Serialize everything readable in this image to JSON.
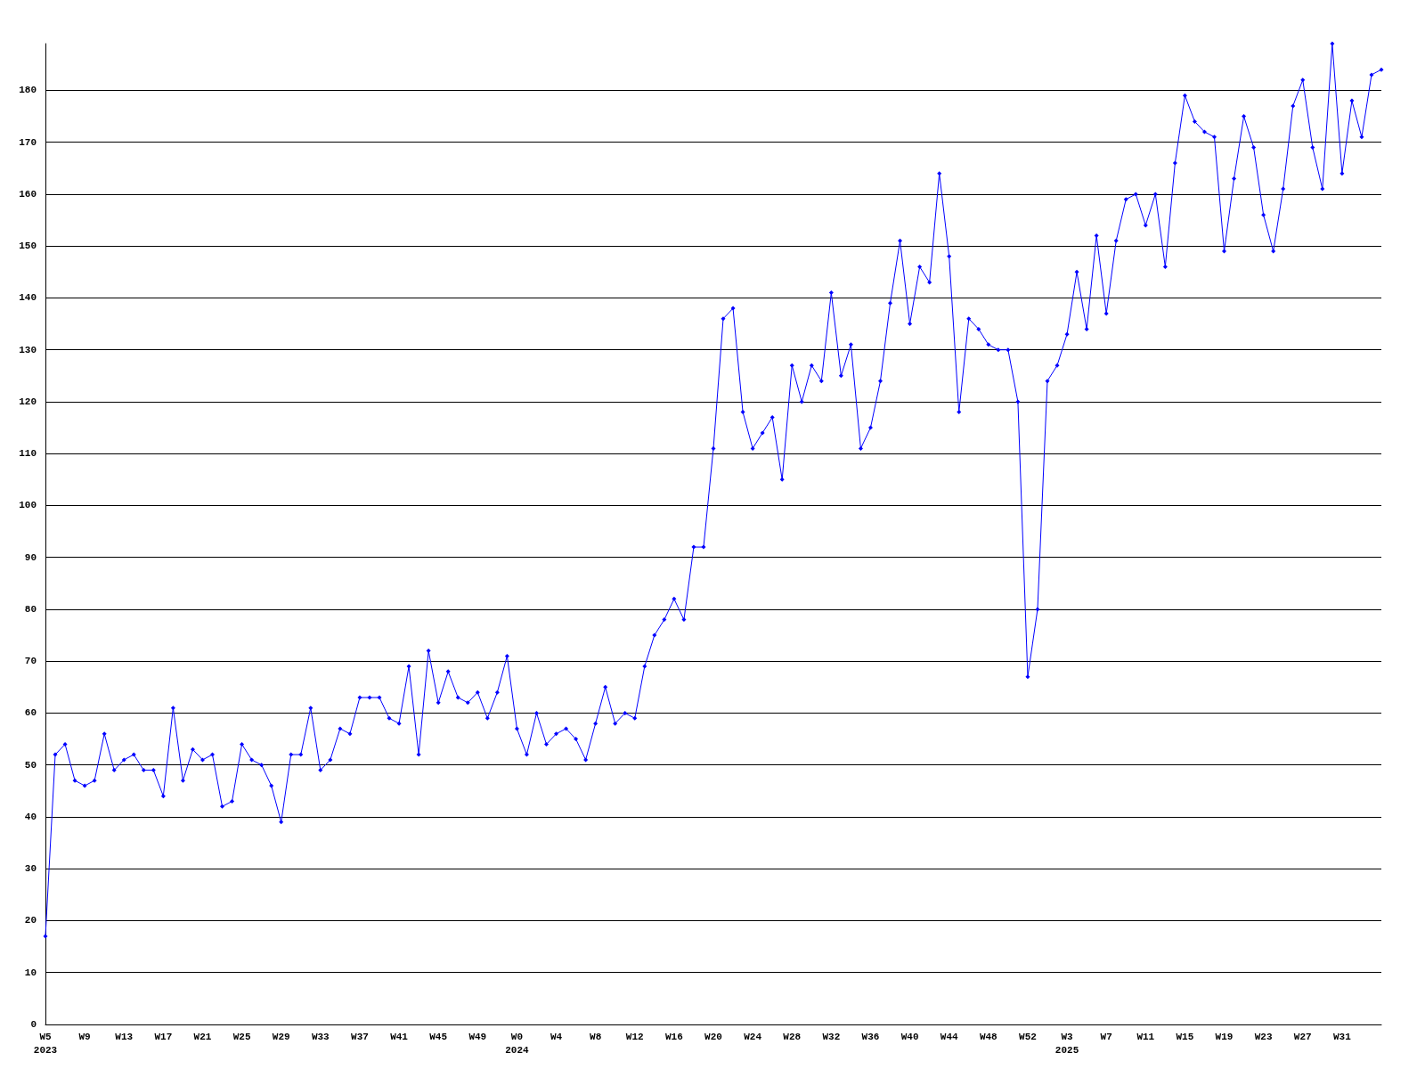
{
  "chart_data": {
    "type": "line",
    "categories": [
      "W5\n2023",
      null,
      null,
      null,
      "W9",
      null,
      null,
      null,
      "W13",
      null,
      null,
      null,
      "W17",
      null,
      null,
      null,
      "W21",
      null,
      null,
      null,
      "W25",
      null,
      null,
      null,
      "W29",
      null,
      null,
      null,
      "W33",
      null,
      null,
      null,
      "W37",
      null,
      null,
      null,
      "W41",
      null,
      null,
      null,
      "W45",
      null,
      null,
      null,
      "W49",
      null,
      null,
      null,
      "W0\n2024",
      null,
      null,
      null,
      "W4",
      null,
      null,
      null,
      "W8",
      null,
      null,
      null,
      "W12",
      null,
      null,
      null,
      "W16",
      null,
      null,
      null,
      "W20",
      null,
      null,
      null,
      "W24",
      null,
      null,
      null,
      "W28",
      null,
      null,
      null,
      "W32",
      null,
      null,
      null,
      "W36",
      null,
      null,
      null,
      "W40",
      null,
      null,
      null,
      "W44",
      null,
      null,
      null,
      "W48",
      null,
      null,
      null,
      "W52",
      null,
      null,
      null,
      "W3\n2025",
      null,
      null,
      null,
      "W7",
      null,
      null,
      null,
      "W11",
      null,
      null,
      null,
      "W15",
      null,
      null,
      null,
      "W19",
      null,
      null,
      null,
      "W23",
      null,
      null,
      null,
      "W27",
      null,
      null,
      null,
      "W31",
      null,
      null,
      null,
      null
    ],
    "series": [
      {
        "color": "#0000ff",
        "values": [
          17,
          52,
          54,
          47,
          46,
          47,
          56,
          49,
          51,
          52,
          49,
          49,
          44,
          61,
          47,
          53,
          51,
          52,
          42,
          43,
          54,
          51,
          50,
          46,
          39,
          52,
          52,
          61,
          49,
          51,
          57,
          56,
          63,
          63,
          63,
          59,
          58,
          69,
          52,
          72,
          62,
          68,
          63,
          62,
          64,
          59,
          64,
          71,
          57,
          52,
          60,
          54,
          56,
          57,
          55,
          51,
          58,
          65,
          58,
          60,
          59,
          69,
          75,
          78,
          82,
          78,
          92,
          92,
          111,
          136,
          138,
          118,
          111,
          114,
          117,
          105,
          127,
          120,
          127,
          124,
          141,
          125,
          131,
          111,
          115,
          124,
          139,
          151,
          135,
          146,
          143,
          164,
          148,
          118,
          136,
          134,
          131,
          130,
          130,
          120,
          67,
          80,
          124,
          127,
          133,
          145,
          134,
          152,
          137,
          151,
          159,
          160,
          154,
          160,
          146,
          166,
          179,
          174,
          172,
          171,
          149,
          163,
          175,
          169,
          156,
          149,
          161,
          177,
          182,
          169,
          161,
          189,
          164,
          178,
          171,
          183,
          184
        ]
      }
    ],
    "ylim": [
      0,
      189
    ],
    "yticks": [
      0,
      10,
      20,
      30,
      40,
      50,
      60,
      70,
      80,
      90,
      100,
      110,
      120,
      130,
      140,
      150,
      160,
      170,
      180
    ],
    "grid": "y",
    "marker": "diamond",
    "line_style": "solid"
  }
}
